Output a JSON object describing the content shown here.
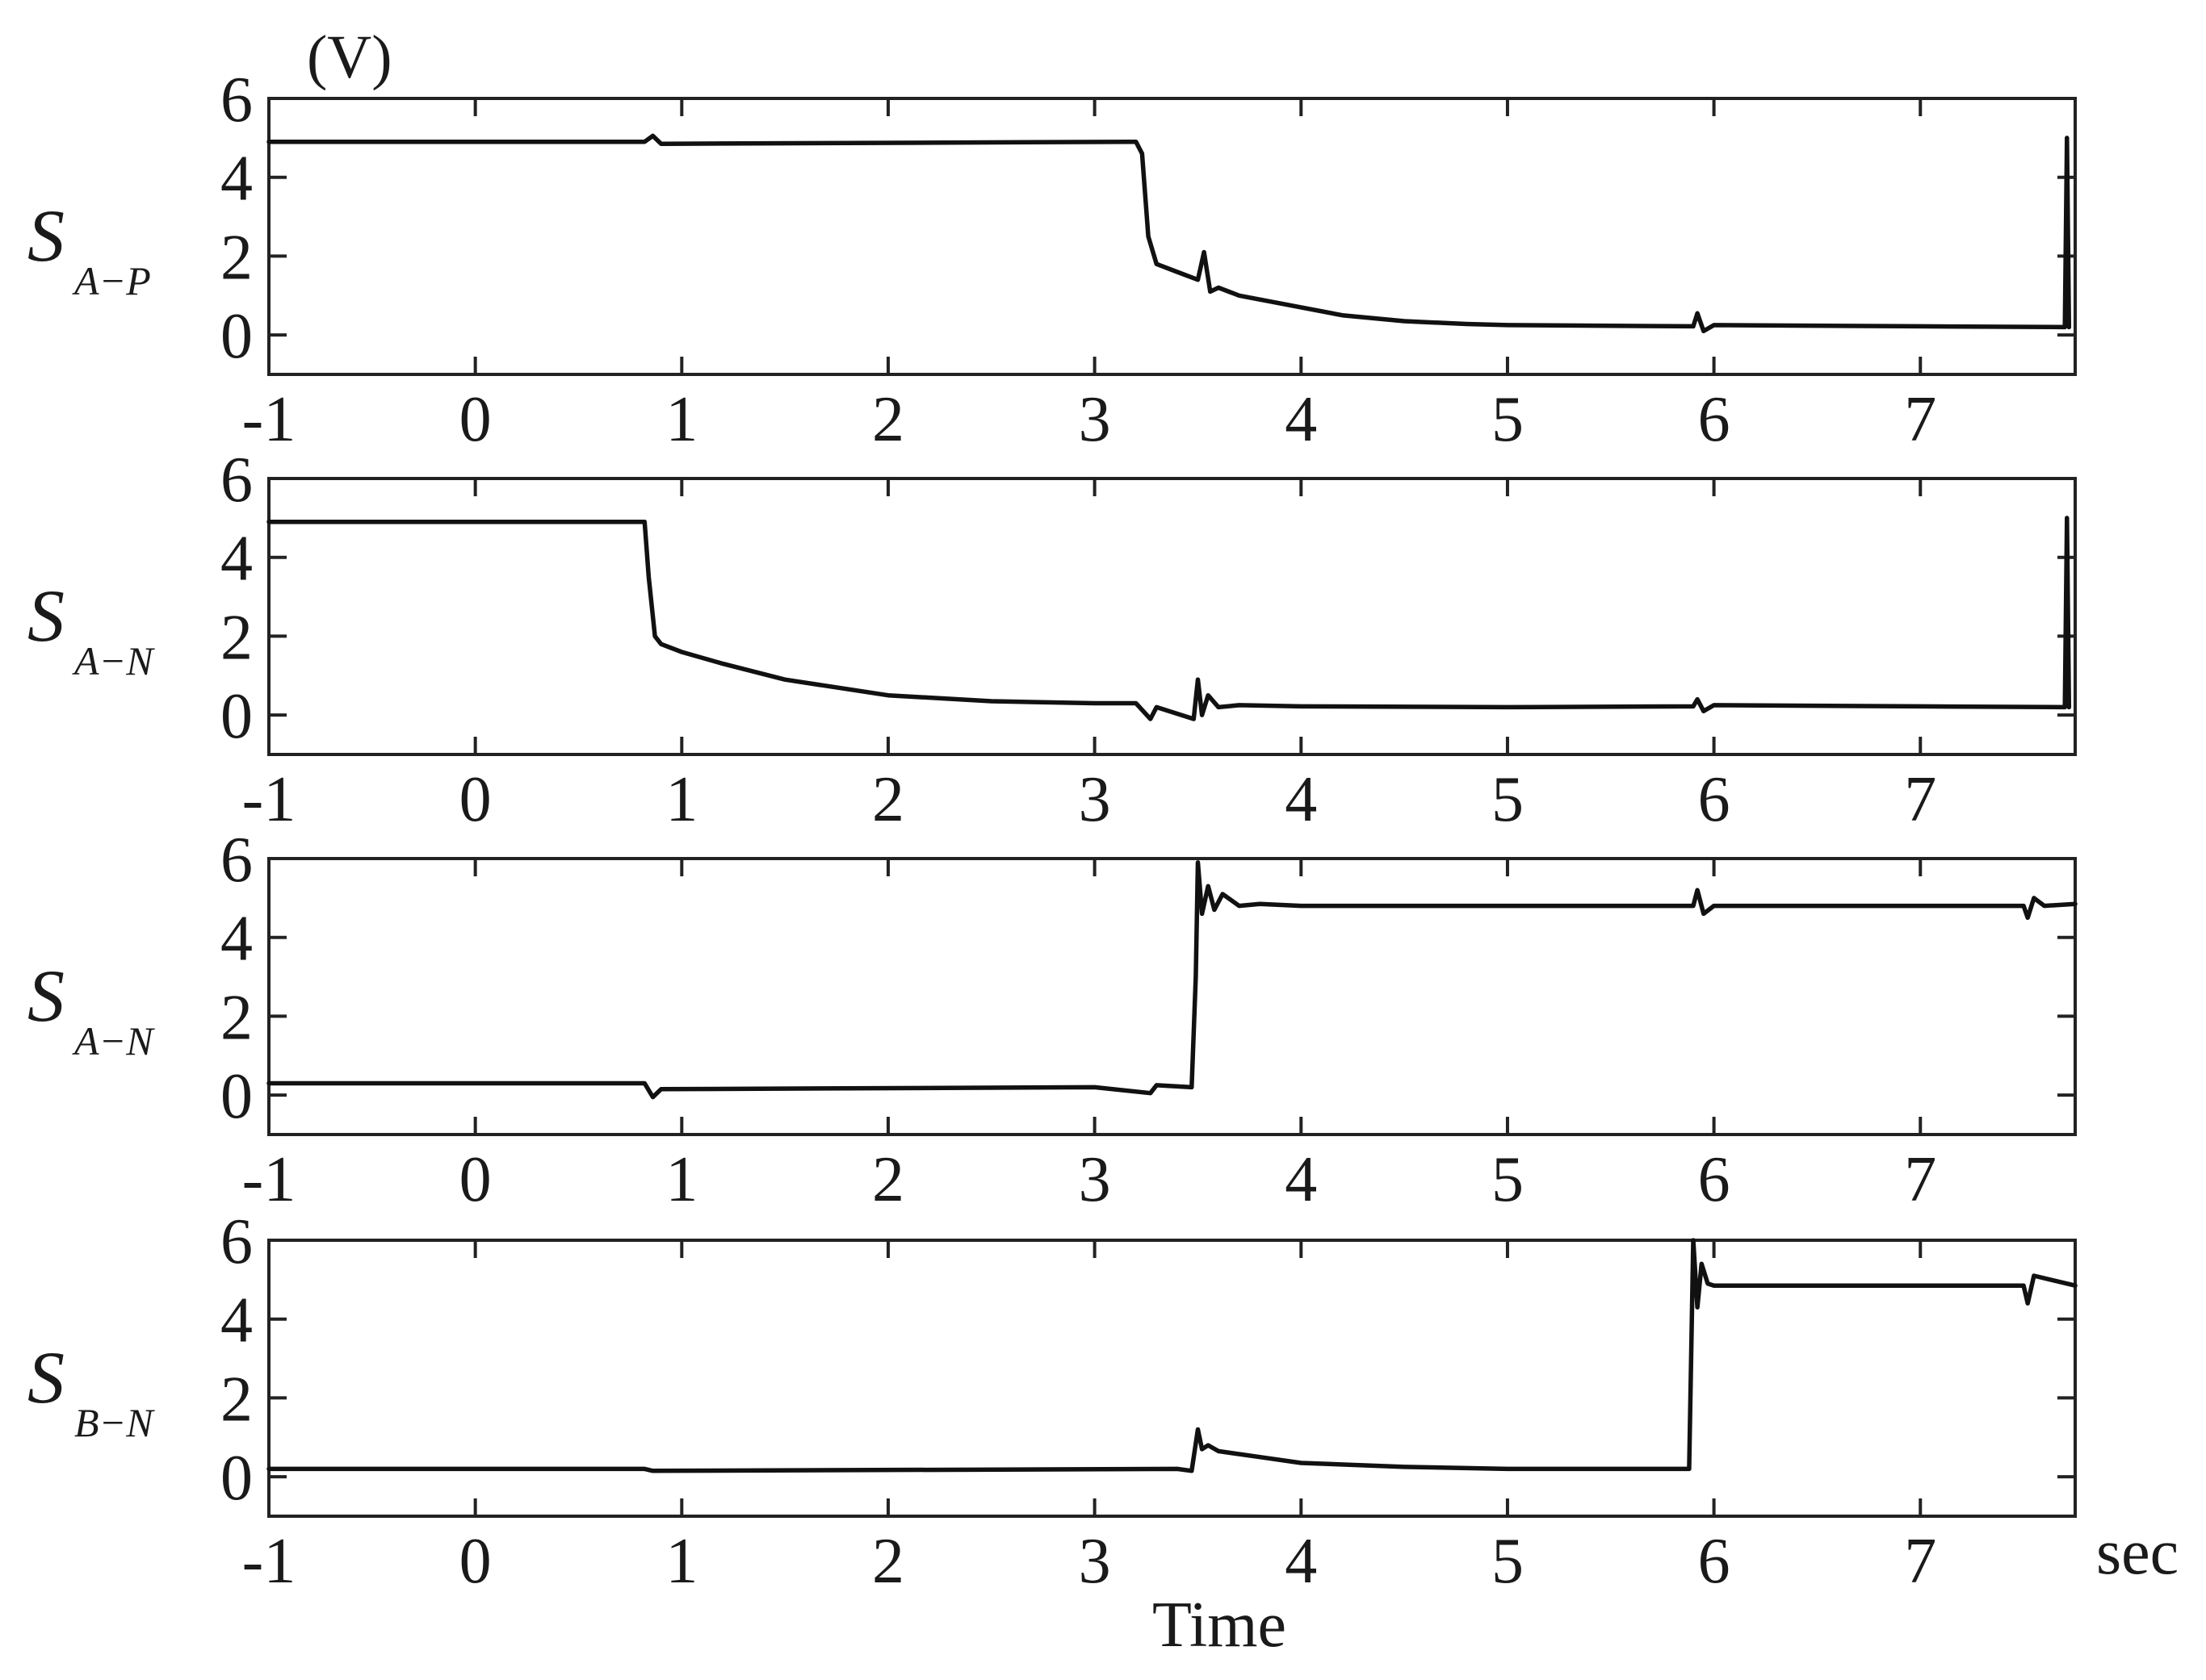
{
  "chart_data": {
    "type": "line",
    "unit_label": "(V)",
    "xlabel": "Time",
    "xunit": "sec",
    "xlim": [
      -1,
      7.75
    ],
    "ylim": [
      -1,
      6
    ],
    "x_ticks": [
      "-1",
      "0",
      "1",
      "2",
      "3",
      "4",
      "5",
      "6",
      "7"
    ],
    "y_ticks": [
      "0",
      "2",
      "4",
      "6"
    ],
    "grid": false,
    "legend": "none",
    "line_color": "#111111",
    "panels": [
      {
        "signal_main": "S",
        "signal_sub": "A−P",
        "series": [
          {
            "x": [
              -1,
              0.82,
              0.86,
              0.9,
              3.2,
              3.23,
              3.26,
              3.3,
              3.4,
              3.5,
              3.53,
              3.56,
              3.6,
              3.7,
              3.8,
              4.0,
              4.2,
              4.5,
              4.8,
              5.0,
              5.9,
              5.92,
              5.95,
              6.0,
              7.0,
              7.7,
              7.71,
              7.72
            ],
            "y": [
              4.9,
              4.9,
              5.05,
              4.85,
              4.9,
              4.6,
              2.5,
              1.8,
              1.6,
              1.4,
              2.1,
              1.1,
              1.2,
              1.0,
              0.9,
              0.7,
              0.5,
              0.35,
              0.28,
              0.25,
              0.22,
              0.55,
              0.1,
              0.25,
              0.22,
              0.2,
              5.0,
              0.2
            ]
          }
        ]
      },
      {
        "signal_main": "S",
        "signal_sub": "A−N",
        "series": [
          {
            "x": [
              -1,
              0.82,
              0.84,
              0.87,
              0.9,
              1.0,
              1.2,
              1.5,
              2.0,
              2.5,
              3.0,
              3.2,
              3.27,
              3.3,
              3.48,
              3.5,
              3.52,
              3.55,
              3.6,
              3.7,
              4.0,
              5.0,
              5.9,
              5.92,
              5.95,
              6.0,
              7.0,
              7.7,
              7.71,
              7.72
            ],
            "y": [
              4.9,
              4.9,
              3.5,
              2.0,
              1.8,
              1.6,
              1.3,
              0.9,
              0.5,
              0.35,
              0.3,
              0.3,
              -0.1,
              0.2,
              -0.1,
              0.9,
              0.0,
              0.5,
              0.2,
              0.25,
              0.22,
              0.2,
              0.22,
              0.4,
              0.1,
              0.25,
              0.22,
              0.2,
              5.0,
              0.2
            ]
          }
        ]
      },
      {
        "signal_main": "S",
        "signal_sub": "A−N",
        "series": [
          {
            "x": [
              -1,
              0.82,
              0.86,
              0.9,
              3.0,
              3.27,
              3.3,
              3.47,
              3.49,
              3.5,
              3.52,
              3.55,
              3.58,
              3.62,
              3.7,
              3.8,
              4.0,
              5.0,
              5.9,
              5.92,
              5.95,
              6.0,
              7.0,
              7.5,
              7.52,
              7.55,
              7.6,
              7.75
            ],
            "y": [
              0.3,
              0.3,
              -0.05,
              0.15,
              0.2,
              0.05,
              0.25,
              0.2,
              3.0,
              5.9,
              4.6,
              5.3,
              4.7,
              5.1,
              4.8,
              4.85,
              4.8,
              4.8,
              4.8,
              5.2,
              4.6,
              4.8,
              4.8,
              4.8,
              4.5,
              5.0,
              4.8,
              4.85
            ]
          }
        ]
      },
      {
        "signal_main": "S",
        "signal_sub": "B−N",
        "series": [
          {
            "x": [
              -1,
              0.82,
              0.86,
              3.4,
              3.47,
              3.5,
              3.52,
              3.55,
              3.6,
              3.8,
              4.0,
              4.5,
              5.0,
              5.88,
              5.9,
              5.92,
              5.94,
              5.97,
              6.0,
              7.0,
              7.5,
              7.52,
              7.55,
              7.75
            ],
            "y": [
              0.2,
              0.2,
              0.15,
              0.2,
              0.15,
              1.2,
              0.7,
              0.8,
              0.65,
              0.5,
              0.35,
              0.25,
              0.2,
              0.2,
              6.0,
              4.3,
              5.4,
              4.9,
              4.85,
              4.85,
              4.85,
              4.4,
              5.1,
              4.85
            ]
          }
        ]
      }
    ]
  }
}
